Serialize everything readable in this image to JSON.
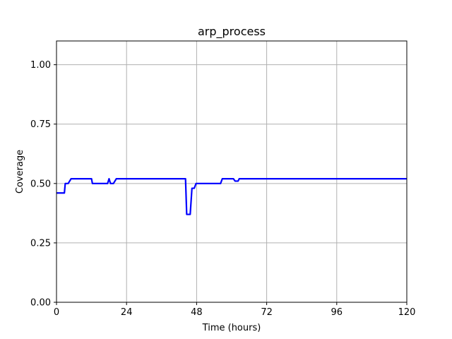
{
  "chart_data": {
    "type": "line",
    "title": "arp_process",
    "xlabel": "Time (hours)",
    "ylabel": "Coverage",
    "xlim": [
      0,
      120
    ],
    "ylim": [
      0,
      1.1
    ],
    "xticks": [
      0,
      24,
      48,
      72,
      96,
      120
    ],
    "xtick_labels": [
      "0",
      "24",
      "48",
      "72",
      "96",
      "120"
    ],
    "yticks": [
      0,
      0.25,
      0.5,
      0.75,
      1.0
    ],
    "ytick_labels": [
      "0.00",
      "0.25",
      "0.50",
      "0.75",
      "1.00"
    ],
    "grid": true,
    "series": [
      {
        "color": "#0000ff",
        "x": [
          0,
          2.7,
          3,
          4,
          5,
          12,
          12.3,
          17.5,
          18,
          18.5,
          19.5,
          20.5,
          44.2,
          44.6,
          45.8,
          46.4,
          47.2,
          47.8,
          56.2,
          56.8,
          60.6,
          61.2,
          62.2,
          62.6,
          120
        ],
        "y": [
          0.46,
          0.46,
          0.5,
          0.5,
          0.52,
          0.52,
          0.5,
          0.5,
          0.52,
          0.5,
          0.5,
          0.52,
          0.52,
          0.37,
          0.37,
          0.48,
          0.48,
          0.5,
          0.5,
          0.52,
          0.52,
          0.51,
          0.51,
          0.52,
          0.52
        ]
      }
    ]
  }
}
